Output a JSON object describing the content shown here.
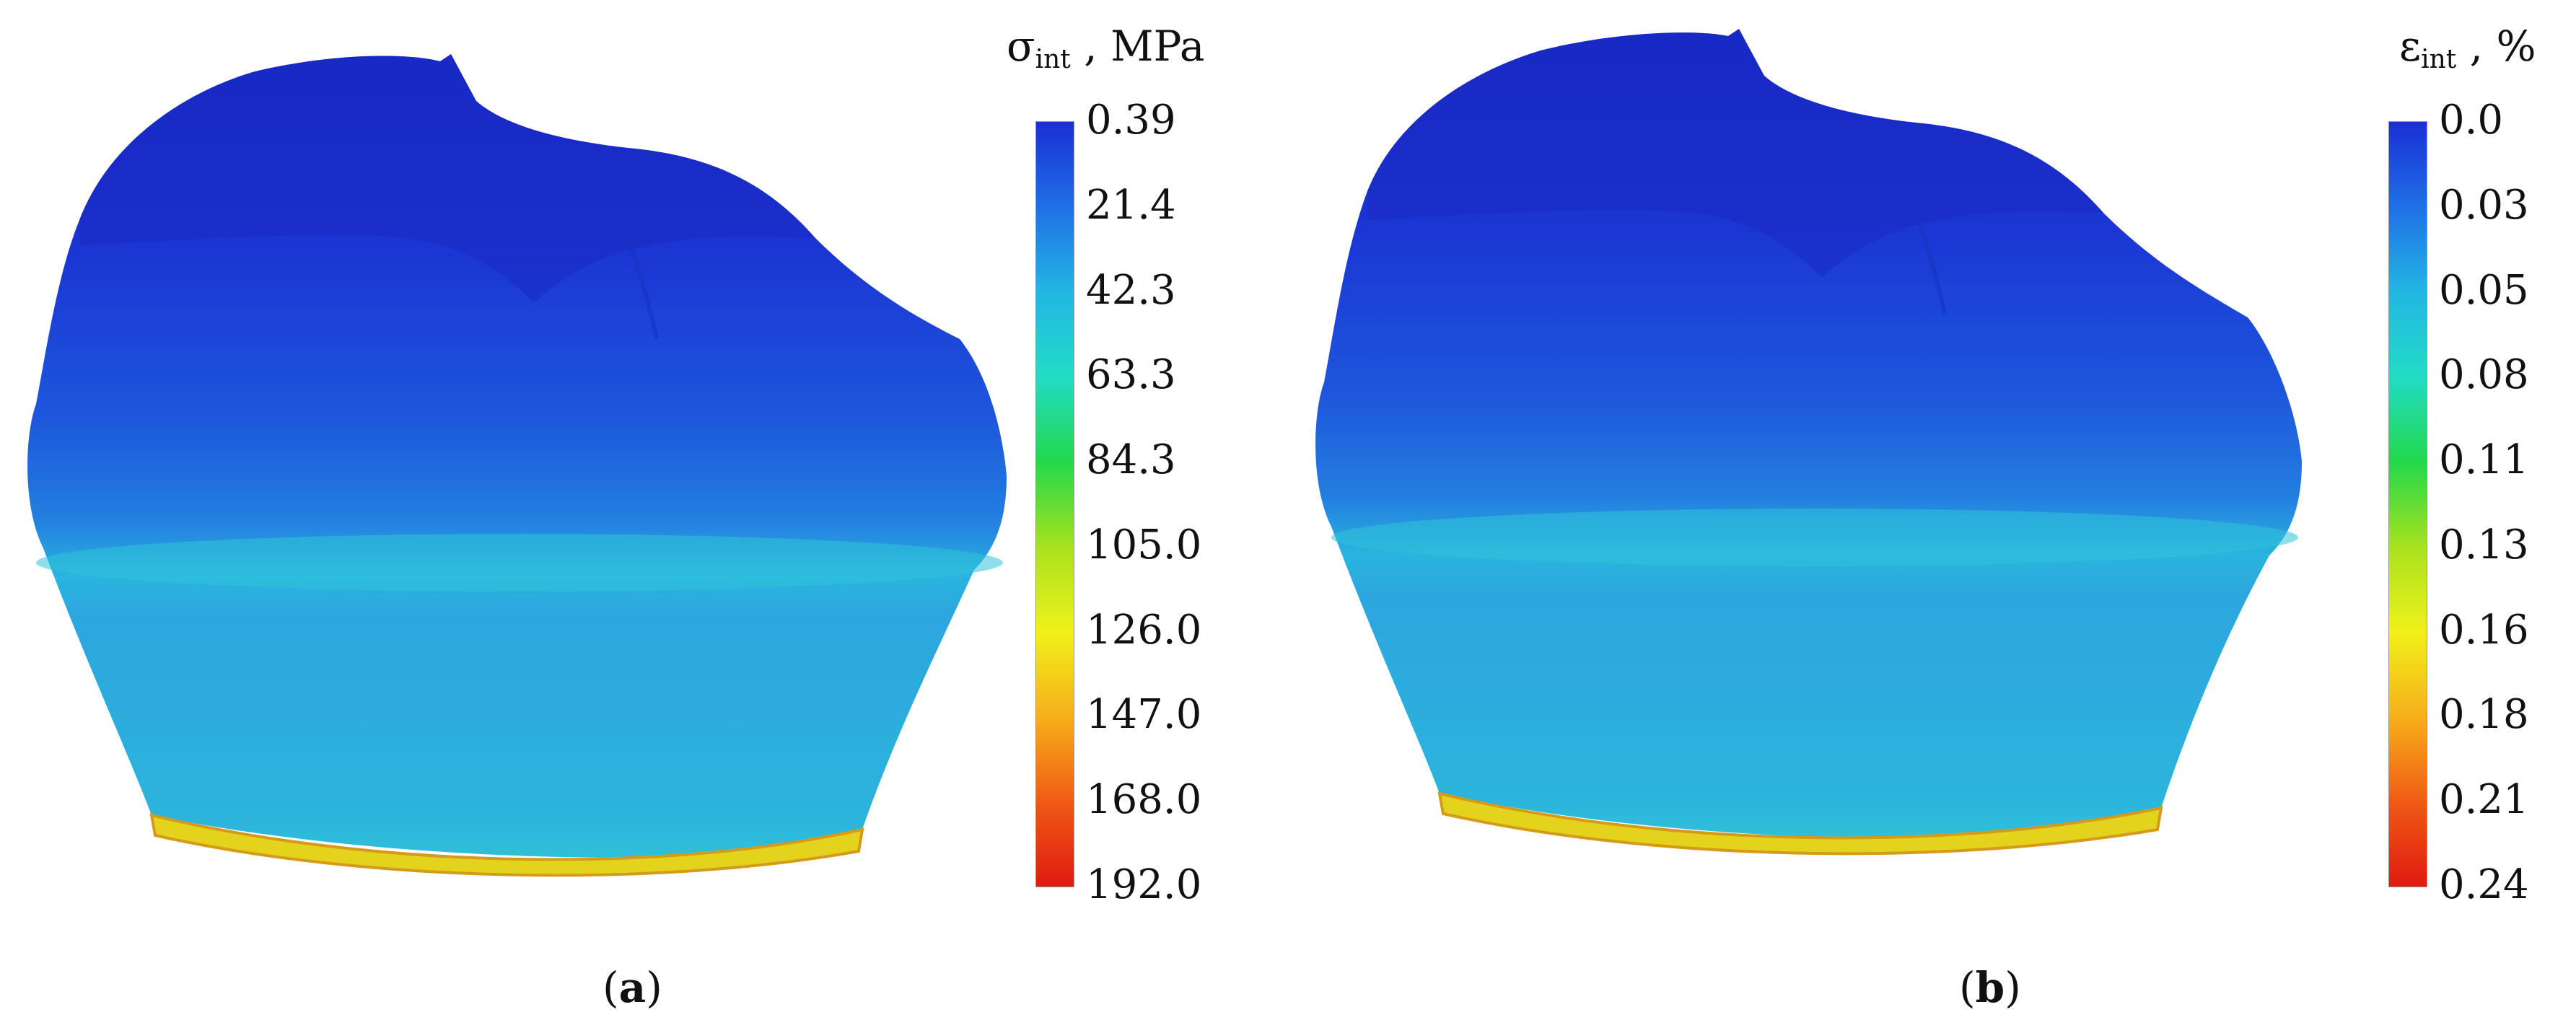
{
  "panels": [
    {
      "id": "a",
      "caption": {
        "open": "(",
        "letter": "a",
        "close": ")"
      },
      "colorbar": {
        "symbol": "σ",
        "subscript": "int",
        "unit": ", MPa",
        "ticks": [
          "0.39",
          "21.4",
          "42.3",
          "63.3",
          "84.3",
          "105.0",
          "126.0",
          "147.0",
          "168.0",
          "192.0"
        ]
      }
    },
    {
      "id": "b",
      "caption": {
        "open": "(",
        "letter": "b",
        "close": ")"
      },
      "colorbar": {
        "symbol": "ε",
        "subscript": "int",
        "unit": ", %",
        "ticks": [
          "0.0",
          "0.03",
          "0.05",
          "0.08",
          "0.11",
          "0.13",
          "0.16",
          "0.18",
          "0.21",
          "0.24"
        ]
      }
    }
  ],
  "colors": {
    "scale": [
      "#1a2fd6",
      "#1f6fe6",
      "#22b6e3",
      "#22dcc6",
      "#22d84a",
      "#a8e21f",
      "#f1f01a",
      "#f7b01a",
      "#f05a14",
      "#e01a10"
    ],
    "top": "#1b2fd2",
    "mid": "#1f5fde",
    "band": "#2cb9dc",
    "lower": "#2aa6de",
    "base": "#e6d21a"
  }
}
